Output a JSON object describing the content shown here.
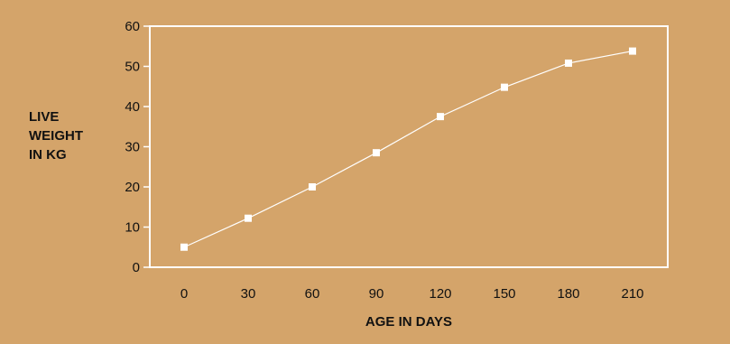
{
  "chart_data": {
    "type": "line",
    "title": "",
    "xlabel": "AGE IN DAYS",
    "ylabel_lines": [
      "LIVE",
      "WEIGHT",
      "IN KG"
    ],
    "x": [
      0,
      30,
      60,
      90,
      120,
      150,
      180,
      210
    ],
    "series": [
      {
        "values": [
          5,
          12.2,
          20,
          28.5,
          37.5,
          44.8,
          50.8,
          53.8
        ]
      }
    ],
    "xticks": [
      "0",
      "30",
      "60",
      "90",
      "120",
      "150",
      "180",
      "210"
    ],
    "yticks": [
      "0",
      "10",
      "20",
      "30",
      "40",
      "50",
      "60"
    ],
    "ylim": [
      0,
      60
    ],
    "grid": false,
    "legend": "none",
    "colors": {
      "background": "#D4A46A",
      "line": "#FFFFFF",
      "text": "#111111"
    }
  }
}
